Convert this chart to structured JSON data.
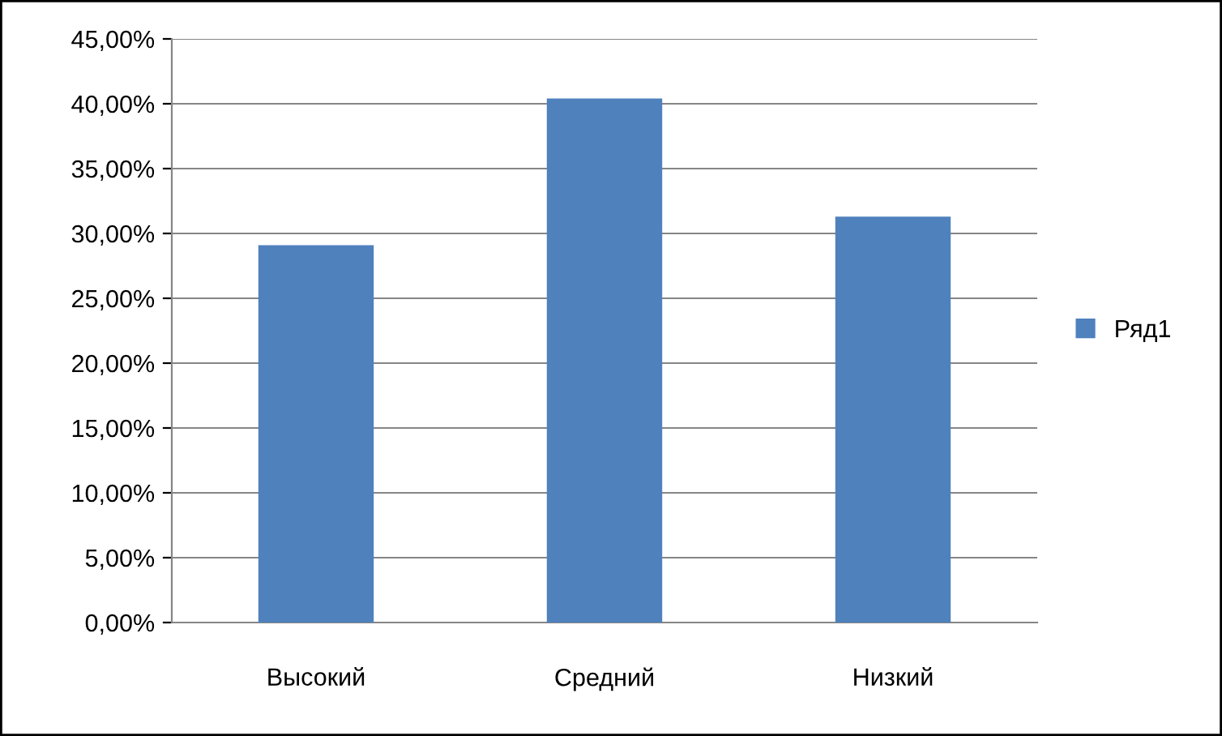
{
  "chart_data": {
    "type": "bar",
    "categories": [
      "Высокий",
      "Средний",
      "Низкий"
    ],
    "series": [
      {
        "name": "Ряд1",
        "color": "#4f81bd",
        "values": [
          29.1,
          40.4,
          31.3
        ]
      }
    ],
    "ylim": [
      0,
      45
    ],
    "yticks": [
      {
        "value": 0,
        "label": "0,00%"
      },
      {
        "value": 5,
        "label": "5,00%"
      },
      {
        "value": 10,
        "label": "10,00%"
      },
      {
        "value": 15,
        "label": "15,00%"
      },
      {
        "value": 20,
        "label": "20,00%"
      },
      {
        "value": 25,
        "label": "25,00%"
      },
      {
        "value": 30,
        "label": "30,00%"
      },
      {
        "value": 35,
        "label": "35,00%"
      },
      {
        "value": 40,
        "label": "40,00%"
      },
      {
        "value": 45,
        "label": "45,00%"
      }
    ],
    "grid": "y",
    "legend": "right"
  }
}
